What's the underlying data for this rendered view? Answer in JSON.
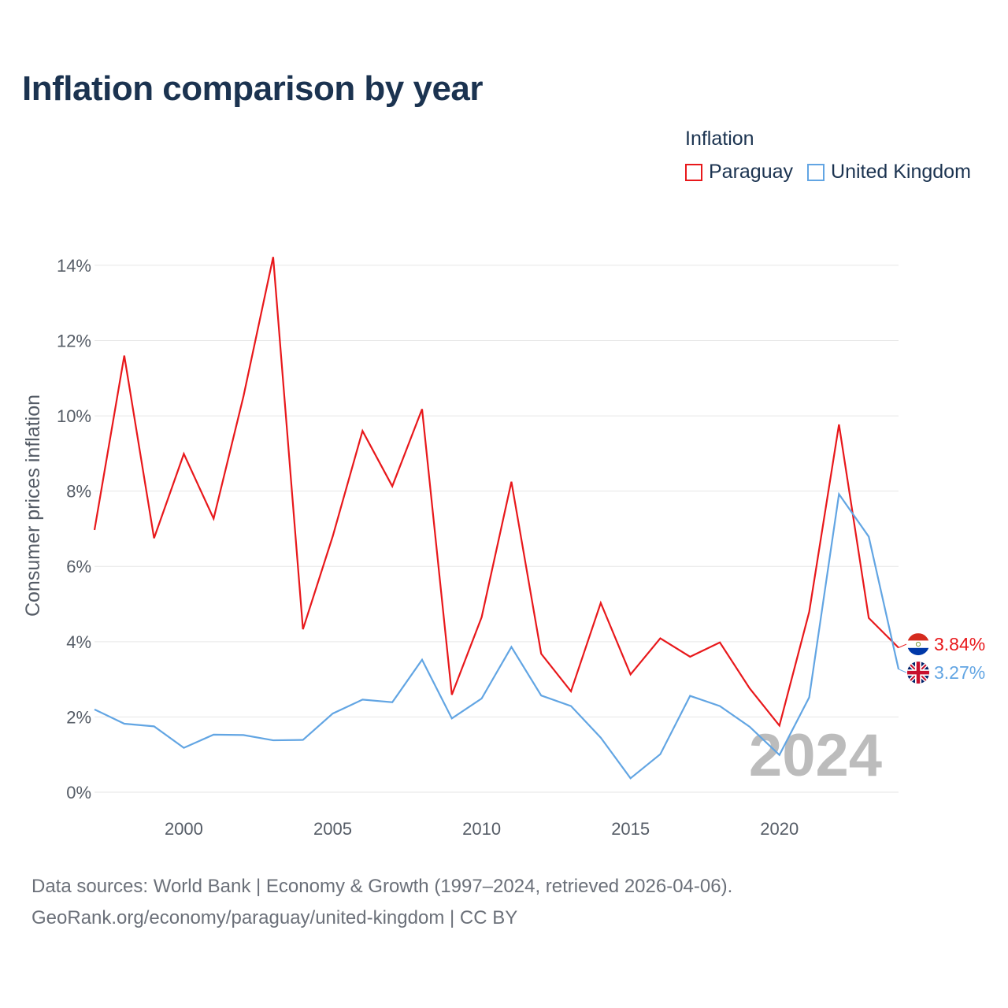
{
  "title": "Inflation comparison by year",
  "legend": {
    "title": "Inflation",
    "items": [
      {
        "label": "Paraguay",
        "color": "#e8181b"
      },
      {
        "label": "United Kingdom",
        "color": "#62a5e3"
      }
    ]
  },
  "watermark": "2024",
  "source": {
    "line1": "Data sources: World Bank | Economy & Growth (1997–2024, retrieved 2026-04-06).",
    "line2": "GeoRank.org/economy/paraguay/united-kingdom | CC BY"
  },
  "chart_data": {
    "type": "line",
    "title": "Inflation comparison by year",
    "xlabel": "",
    "ylabel": "Consumer prices inflation",
    "x": [
      1997,
      1998,
      1999,
      2000,
      2001,
      2002,
      2003,
      2004,
      2005,
      2006,
      2007,
      2008,
      2009,
      2010,
      2011,
      2012,
      2013,
      2014,
      2015,
      2016,
      2017,
      2018,
      2019,
      2020,
      2021,
      2022,
      2023,
      2024
    ],
    "xlim": [
      1997,
      2024
    ],
    "ylim": [
      0,
      14.5
    ],
    "x_ticks": [
      2000,
      2005,
      2010,
      2015,
      2020
    ],
    "x_tick_labels": [
      "2000",
      "2005",
      "2010",
      "2015",
      "2020"
    ],
    "y_ticks": [
      0,
      2,
      4,
      6,
      8,
      10,
      12,
      14
    ],
    "y_tick_labels": [
      "0%",
      "2%",
      "4%",
      "6%",
      "8%",
      "10%",
      "12%",
      "14%"
    ],
    "grid": true,
    "series": [
      {
        "name": "Paraguay",
        "color": "#e8181b",
        "values": [
          6.97,
          11.6,
          6.75,
          8.99,
          7.27,
          10.51,
          14.22,
          4.33,
          6.8,
          9.6,
          8.13,
          10.18,
          2.59,
          4.65,
          8.25,
          3.68,
          2.68,
          5.03,
          3.13,
          4.09,
          3.6,
          3.98,
          2.76,
          1.77,
          4.79,
          9.77,
          4.63,
          3.84
        ],
        "end_label": "3.84%"
      },
      {
        "name": "United Kingdom",
        "color": "#62a5e3",
        "values": [
          2.2,
          1.82,
          1.75,
          1.18,
          1.53,
          1.52,
          1.38,
          1.39,
          2.09,
          2.46,
          2.39,
          3.52,
          1.96,
          2.49,
          3.86,
          2.57,
          2.29,
          1.45,
          0.37,
          1.01,
          2.56,
          2.29,
          1.74,
          0.99,
          2.52,
          7.92,
          6.79,
          3.27
        ],
        "end_label": "3.27%"
      }
    ]
  }
}
